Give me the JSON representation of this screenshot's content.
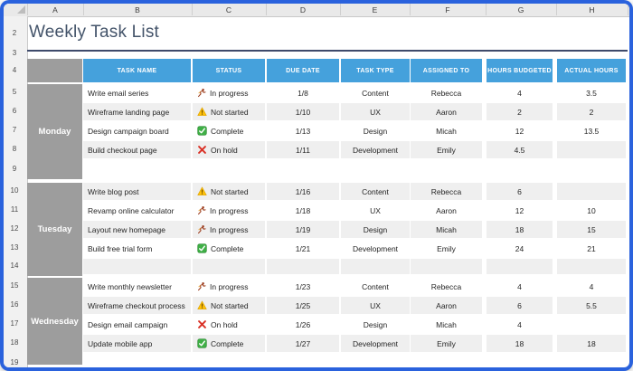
{
  "window": {
    "frame_color": "#2A62DD"
  },
  "sheet": {
    "title": "Weekly Task List",
    "column_letters": [
      "A",
      "B",
      "C",
      "D",
      "E",
      "F",
      "G",
      "H"
    ],
    "row_numbers": [
      "2",
      "3",
      "4",
      "5",
      "6",
      "7",
      "8",
      "9",
      "10",
      "11",
      "12",
      "13",
      "14",
      "15",
      "16",
      "17",
      "18",
      "19"
    ],
    "headers": [
      "TASK NAME",
      "STATUS",
      "DUE DATE",
      "TASK TYPE",
      "ASSIGNED TO",
      "HOURS BUDGETED",
      "ACTUAL HOURS"
    ],
    "colors": {
      "header_bg": "#45A1DC",
      "header_text": "#FFFFFF",
      "day_bg": "#9D9D9D",
      "band": "#EFEFEF",
      "title_text": "#44546A",
      "title_rule": "#3E4A6B",
      "status_not_started": "#FFC107",
      "status_complete": "#3FAF46",
      "status_on_hold": "#D93025",
      "status_in_progress": "#9C3D1E"
    },
    "days": [
      {
        "label": "Monday",
        "tasks": [
          {
            "name": "Write email series",
            "icon": "runner",
            "status": "In progress",
            "due": "1/8",
            "type": "Content",
            "assigned": "Rebecca",
            "budgeted": "4",
            "actual": "3.5"
          },
          {
            "name": "Wireframe landing page",
            "icon": "warning",
            "status": "Not started",
            "due": "1/10",
            "type": "UX",
            "assigned": "Aaron",
            "budgeted": "2",
            "actual": "2"
          },
          {
            "name": "Design campaign board",
            "icon": "check",
            "status": "Complete",
            "due": "1/13",
            "type": "Design",
            "assigned": "Micah",
            "budgeted": "12",
            "actual": "13.5"
          },
          {
            "name": "Build checkout page",
            "icon": "x",
            "status": "On hold",
            "due": "1/11",
            "type": "Development",
            "assigned": "Emily",
            "budgeted": "4.5",
            "actual": ""
          }
        ]
      },
      {
        "label": "Tuesday",
        "tasks": [
          {
            "name": "Write blog post",
            "icon": "warning",
            "status": "Not started",
            "due": "1/16",
            "type": "Content",
            "assigned": "Rebecca",
            "budgeted": "6",
            "actual": ""
          },
          {
            "name": "Revamp online calculator",
            "icon": "runner",
            "status": "In progress",
            "due": "1/18",
            "type": "UX",
            "assigned": "Aaron",
            "budgeted": "12",
            "actual": "10"
          },
          {
            "name": "Layout new homepage",
            "icon": "runner",
            "status": "In progress",
            "due": "1/19",
            "type": "Design",
            "assigned": "Micah",
            "budgeted": "18",
            "actual": "15"
          },
          {
            "name": "Build free trial form",
            "icon": "check",
            "status": "Complete",
            "due": "1/21",
            "type": "Development",
            "assigned": "Emily",
            "budgeted": "24",
            "actual": "21"
          }
        ]
      },
      {
        "label": "Wednesday",
        "tasks": [
          {
            "name": "Write monthly newsletter",
            "icon": "runner",
            "status": "In progress",
            "due": "1/23",
            "type": "Content",
            "assigned": "Rebecca",
            "budgeted": "4",
            "actual": "4"
          },
          {
            "name": "Wireframe checkout process",
            "icon": "warning",
            "status": "Not started",
            "due": "1/25",
            "type": "UX",
            "assigned": "Aaron",
            "budgeted": "6",
            "actual": "5.5"
          },
          {
            "name": "Design email campaign",
            "icon": "x",
            "status": "On hold",
            "due": "1/26",
            "type": "Design",
            "assigned": "Micah",
            "budgeted": "4",
            "actual": ""
          },
          {
            "name": "Update mobile app",
            "icon": "check",
            "status": "Complete",
            "due": "1/27",
            "type": "Development",
            "assigned": "Emily",
            "budgeted": "18",
            "actual": "18"
          }
        ]
      }
    ]
  }
}
